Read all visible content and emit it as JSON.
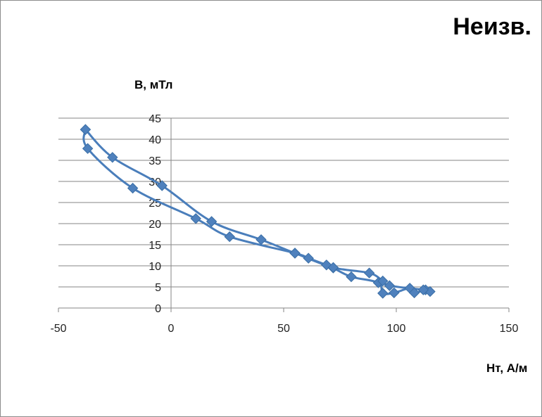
{
  "chart_data": {
    "type": "scatter",
    "title": "Неизв.",
    "xlabel": "Hт, А/м",
    "ylabel": "В, мТл",
    "xlim": [
      -50,
      150
    ],
    "ylim": [
      0,
      45
    ],
    "x_ticks": [
      -50,
      0,
      50,
      100,
      150
    ],
    "y_ticks": [
      0,
      5,
      10,
      15,
      20,
      25,
      30,
      35,
      40,
      45
    ],
    "grid": "horizontal",
    "legend": "none",
    "colors": {
      "series": "#4a7ebb",
      "marker": "#4f81bd",
      "grid": "#868686",
      "axis": "#868686"
    },
    "series": [
      {
        "points": [
          [
            -38,
            42.3
          ],
          [
            -37,
            37.8
          ],
          [
            -17,
            28.4
          ],
          [
            11,
            21.2
          ],
          [
            26,
            16.9
          ],
          [
            55,
            13.0
          ],
          [
            61,
            11.8
          ],
          [
            69,
            10.2
          ],
          [
            72,
            9.5
          ],
          [
            80,
            7.4
          ],
          [
            92,
            6.0
          ],
          [
            94,
            3.5
          ],
          [
            99,
            3.6
          ],
          [
            106,
            4.7
          ],
          [
            108,
            3.6
          ],
          [
            113,
            4.3
          ],
          [
            115,
            3.9
          ],
          [
            112,
            4.3
          ],
          [
            97,
            5.3
          ],
          [
            94,
            6.4
          ],
          [
            88,
            8.3
          ],
          [
            72,
            9.6
          ],
          [
            55,
            13.0
          ],
          [
            40,
            16.2
          ],
          [
            18,
            20.5
          ],
          [
            -4,
            29.0
          ],
          [
            -26,
            35.7
          ],
          [
            -38,
            42.3
          ]
        ]
      }
    ]
  }
}
